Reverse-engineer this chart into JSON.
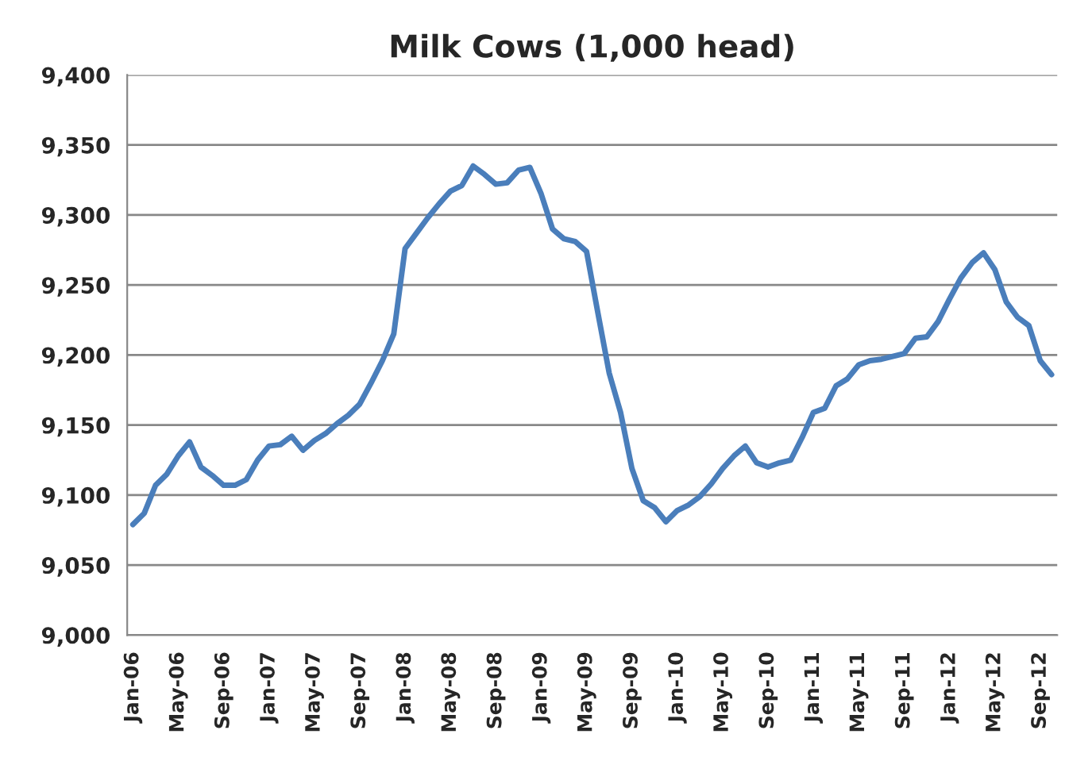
{
  "chart_data": {
    "type": "line",
    "title": "Milk Cows (1,000 head)",
    "categories": [
      "Jan-06",
      null,
      null,
      null,
      "May-06",
      null,
      null,
      null,
      "Sep-06",
      null,
      null,
      null,
      "Jan-07",
      null,
      null,
      null,
      "May-07",
      null,
      null,
      null,
      "Sep-07",
      null,
      null,
      null,
      "Jan-08",
      null,
      null,
      null,
      "May-08",
      null,
      null,
      null,
      "Sep-08",
      null,
      null,
      null,
      "Jan-09",
      null,
      null,
      null,
      "May-09",
      null,
      null,
      null,
      "Sep-09",
      null,
      null,
      null,
      "Jan-10",
      null,
      null,
      null,
      "May-10",
      null,
      null,
      null,
      "Sep-10",
      null,
      null,
      null,
      "Jan-11",
      null,
      null,
      null,
      "May-11",
      null,
      null,
      null,
      "Sep-11",
      null,
      null,
      null,
      "Jan-12",
      null,
      null,
      null,
      "May-12",
      null,
      null,
      null,
      "Sep-12",
      null
    ],
    "series": [
      {
        "color": "#4a7ebb",
        "values": [
          9079,
          9087,
          9107,
          9115,
          9128,
          9138,
          9120,
          9114,
          9107,
          9107,
          9111,
          9125,
          9135,
          9136,
          9142,
          9132,
          9139,
          9144,
          9151,
          9157,
          9165,
          9180,
          9196,
          9215,
          9276,
          9287,
          9298,
          9308,
          9317,
          9321,
          9335,
          9329,
          9322,
          9323,
          9332,
          9334,
          9315,
          9290,
          9283,
          9281,
          9274,
          9230,
          9187,
          9159,
          9119,
          9096,
          9091,
          9081,
          9089,
          9093,
          9099,
          9108,
          9119,
          9128,
          9135,
          9123,
          9120,
          9123,
          9125,
          9141,
          9159,
          9162,
          9178,
          9183,
          9193,
          9196,
          9197,
          9199,
          9201,
          9212,
          9213,
          9224,
          9240,
          9255,
          9266,
          9273,
          9261,
          9238,
          9227,
          9221,
          9196,
          9186
        ]
      }
    ],
    "ylim": [
      9000,
      9400
    ],
    "yticks": [
      {
        "value": 9000,
        "label": "9,000"
      },
      {
        "value": 9050,
        "label": "9,050"
      },
      {
        "value": 9100,
        "label": "9,100"
      },
      {
        "value": 9150,
        "label": "9,150"
      },
      {
        "value": 9200,
        "label": "9,200"
      },
      {
        "value": 9250,
        "label": "9,250"
      },
      {
        "value": 9300,
        "label": "9,300"
      },
      {
        "value": 9350,
        "label": "9,350"
      },
      {
        "value": 9400,
        "label": "9,400"
      }
    ],
    "grid": "y",
    "marker": "none",
    "line_style": "solid"
  }
}
